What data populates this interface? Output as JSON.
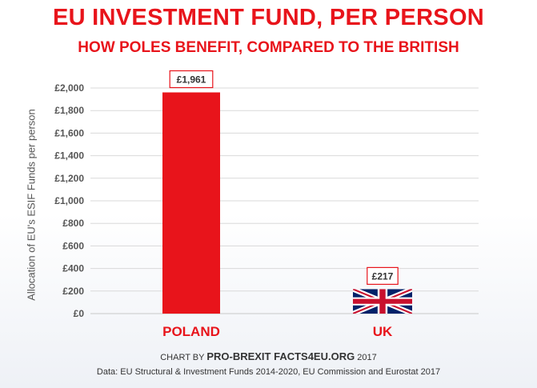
{
  "chart_data": {
    "type": "bar",
    "title": "EU INVESTMENT FUND, PER PERSON",
    "subtitle": "HOW POLES BENEFIT, COMPARED TO THE BRITISH",
    "ylabel": "Allocation of EU's ESIF Funds per person",
    "xlabel": "",
    "categories": [
      "POLAND",
      "UK"
    ],
    "values": [
      1961,
      217
    ],
    "data_labels": [
      "£1,961",
      "£217"
    ],
    "ylim": [
      0,
      2000
    ],
    "yticks": [
      0,
      200,
      400,
      600,
      800,
      1000,
      1200,
      1400,
      1600,
      1800,
      2000
    ],
    "ytick_labels": [
      "£0",
      "£200",
      "£400",
      "£600",
      "£800",
      "£1,000",
      "£1,200",
      "£1,400",
      "£1,600",
      "£1,800",
      "£2,000"
    ],
    "grid": true,
    "legend": "none",
    "bar_fills": [
      "red-solid",
      "union-jack-flag"
    ],
    "colors": {
      "accent": "#e8141b",
      "grid": "#d9d9d9",
      "axis_text": "#555555"
    }
  },
  "footer": {
    "credit_prefix": "CHART BY ",
    "credit_brand": "PRO-BREXIT FACTS4EU.ORG",
    "credit_year": " 2017",
    "source": "Data: EU Structural & Investment Funds 2014-2020, EU Commission and Eurostat 2017"
  }
}
